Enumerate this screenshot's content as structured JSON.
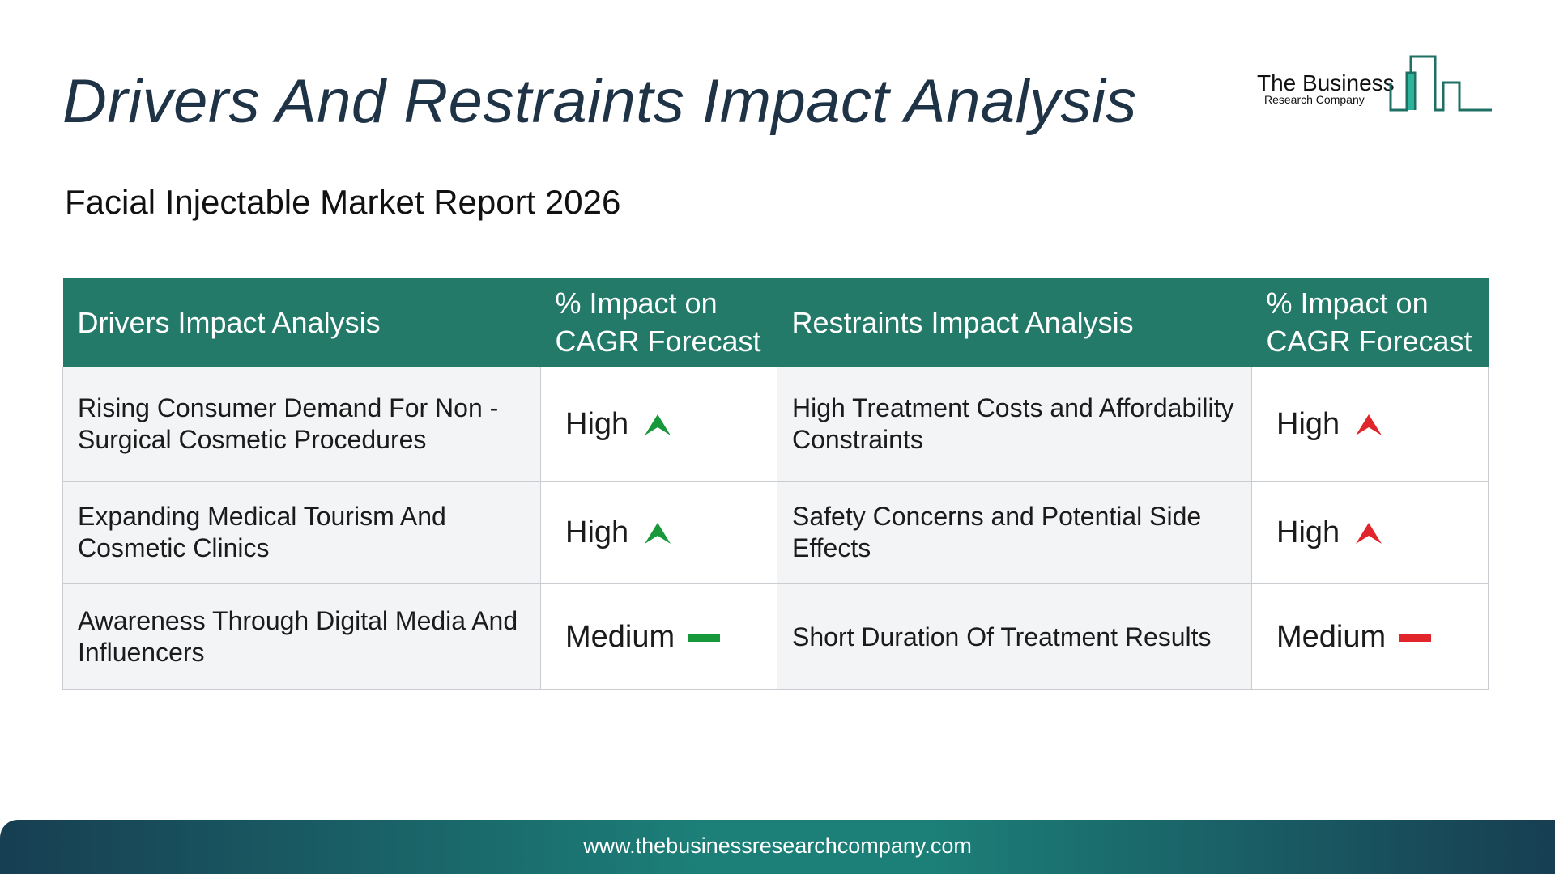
{
  "header": {
    "title": "Drivers And Restraints Impact Analysis",
    "subtitle": "Facial Injectable Market Report 2026",
    "logo_line1": "The Business",
    "logo_line2": "Research Company"
  },
  "table": {
    "columns": [
      "Drivers Impact Analysis",
      "% Impact on CAGR Forecast",
      "Restraints Impact Analysis",
      "% Impact on CAGR Forecast"
    ],
    "rows": [
      [
        "Rising Consumer Demand For Non -Surgical Cosmetic Procedures",
        "High",
        "High Treatment Costs and Affordability Constraints",
        "High"
      ],
      [
        "Expanding Medical Tourism And Cosmetic Clinics",
        "High",
        "Safety Concerns and Potential Side Effects",
        "High"
      ],
      [
        "Awareness Through Digital Media And Influencers",
        "Medium",
        "Short Duration Of Treatment Results",
        "Medium"
      ]
    ]
  },
  "footer": {
    "url": "www.thebusinessresearchcompany.com"
  }
}
